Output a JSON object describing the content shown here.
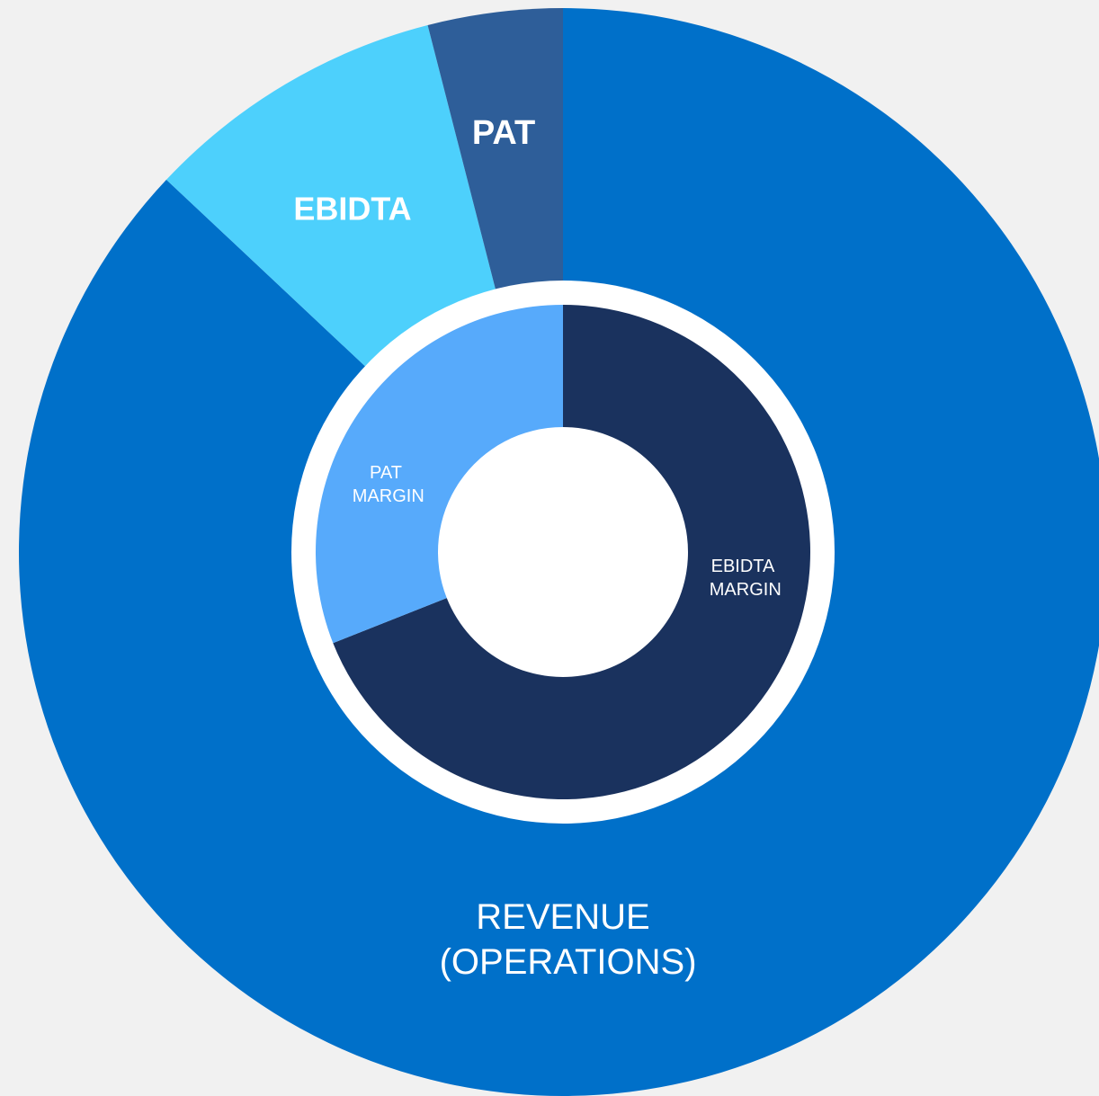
{
  "chart_data": [
    {
      "type": "pie",
      "categories": [
        "REVENUE (OPERATIONS)",
        "EBIDTA",
        "PAT"
      ],
      "values": [
        87,
        9,
        4
      ],
      "colors": [
        "#0070c9",
        "#4dd0fc",
        "#2e5e99"
      ]
    },
    {
      "type": "donut",
      "categories": [
        "EBIDTA MARGIN",
        "PAT MARGIN"
      ],
      "values": [
        69,
        31
      ],
      "colors": [
        "#1a325e",
        "#57aafb"
      ]
    }
  ]
}
